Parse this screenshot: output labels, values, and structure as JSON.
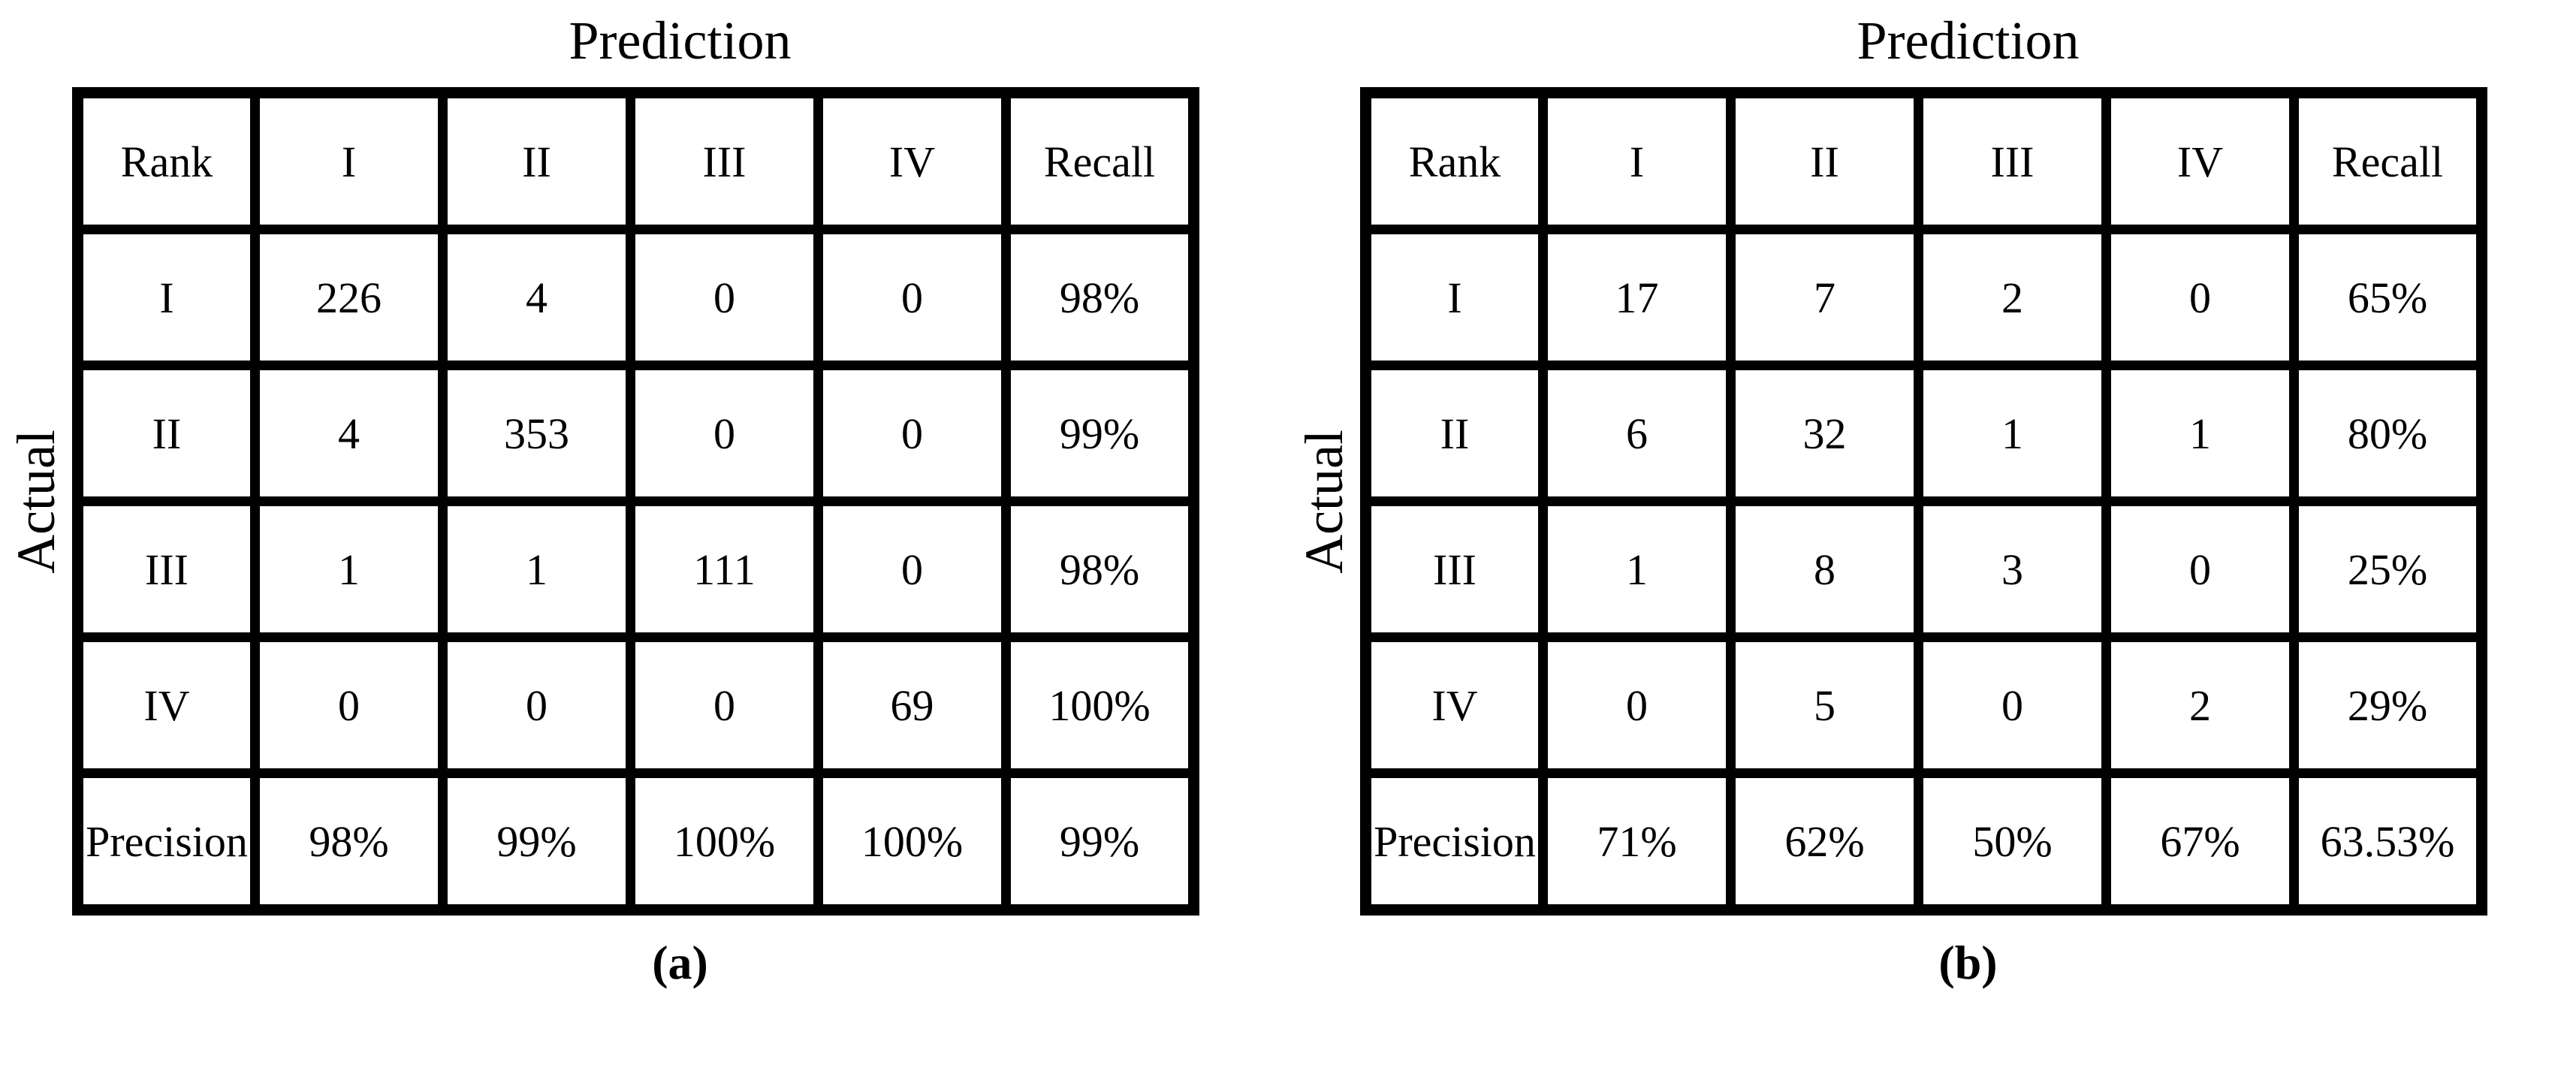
{
  "palette": {
    "diagonal_class_i": "#fbe5d6",
    "diagonal_class_ii": "#bdd7ee",
    "diagonal_class_iii": "#d9d9d9",
    "diagonal_class_iv": "#c6e0b4",
    "metric_cell_bg": "#f2f2f2",
    "overall_accuracy_bg": "#ffff00",
    "grid_border": "#000000",
    "background": "#ffffff"
  },
  "figures": [
    {
      "title": "Prediction",
      "y_axis_label": "Actual",
      "caption": "(a)",
      "header": [
        "Rank",
        "I",
        "II",
        "III",
        "IV",
        "Recall"
      ],
      "rows": [
        {
          "label": "I",
          "cells": [
            "226",
            "4",
            "0",
            "0",
            "98%"
          ]
        },
        {
          "label": "II",
          "cells": [
            "4",
            "353",
            "0",
            "0",
            "99%"
          ]
        },
        {
          "label": "III",
          "cells": [
            "1",
            "1",
            "111",
            "0",
            "98%"
          ]
        },
        {
          "label": "IV",
          "cells": [
            "0",
            "0",
            "0",
            "69",
            "100%"
          ]
        },
        {
          "label": "Precision",
          "cells": [
            "98%",
            "99%",
            "100%",
            "100%",
            "99%"
          ]
        }
      ]
    },
    {
      "title": "Prediction",
      "y_axis_label": "Actual",
      "caption": "(b)",
      "header": [
        "Rank",
        "I",
        "II",
        "III",
        "IV",
        "Recall"
      ],
      "rows": [
        {
          "label": "I",
          "cells": [
            "17",
            "7",
            "2",
            "0",
            "65%"
          ]
        },
        {
          "label": "II",
          "cells": [
            "6",
            "32",
            "1",
            "1",
            "80%"
          ]
        },
        {
          "label": "III",
          "cells": [
            "1",
            "8",
            "3",
            "0",
            "25%"
          ]
        },
        {
          "label": "IV",
          "cells": [
            "0",
            "5",
            "0",
            "2",
            "29%"
          ]
        },
        {
          "label": "Precision",
          "cells": [
            "71%",
            "62%",
            "50%",
            "67%",
            "63.53%"
          ]
        }
      ]
    }
  ],
  "chart_data": [
    {
      "type": "heatmap",
      "title": "Prediction",
      "xlabel": "Prediction",
      "ylabel": "Actual",
      "caption": "(a)",
      "classes": [
        "I",
        "II",
        "III",
        "IV"
      ],
      "matrix": [
        [
          226,
          4,
          0,
          0
        ],
        [
          4,
          353,
          0,
          0
        ],
        [
          1,
          1,
          111,
          0
        ],
        [
          0,
          0,
          0,
          69
        ]
      ],
      "recall_pct": [
        98,
        99,
        98,
        100
      ],
      "precision_pct": [
        98,
        99,
        100,
        100
      ],
      "overall_accuracy": "99%"
    },
    {
      "type": "heatmap",
      "title": "Prediction",
      "xlabel": "Prediction",
      "ylabel": "Actual",
      "caption": "(b)",
      "classes": [
        "I",
        "II",
        "III",
        "IV"
      ],
      "matrix": [
        [
          17,
          7,
          2,
          0
        ],
        [
          6,
          32,
          1,
          1
        ],
        [
          1,
          8,
          3,
          0
        ],
        [
          0,
          5,
          0,
          2
        ]
      ],
      "recall_pct": [
        65,
        80,
        25,
        29
      ],
      "precision_pct": [
        71,
        62,
        50,
        67
      ],
      "overall_accuracy": "63.53%"
    }
  ]
}
